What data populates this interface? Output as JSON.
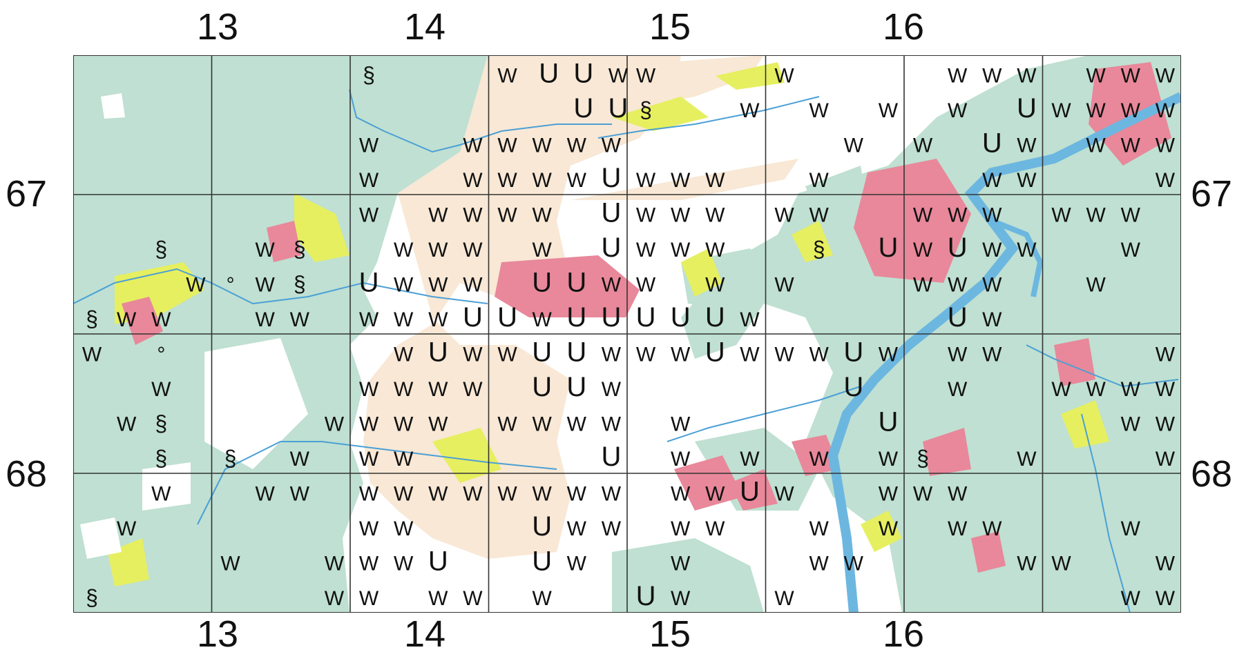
{
  "map": {
    "columns_top": [
      "13",
      "14",
      "15",
      "16"
    ],
    "columns_bottom": [
      "13",
      "14",
      "15",
      "16"
    ],
    "rows_left": [
      "67",
      "68"
    ],
    "rows_right": [
      "67",
      "68"
    ],
    "colors": {
      "forest": "#bfe0d2",
      "farmland": "#f8e8d5",
      "urban": "#e8889a",
      "meadow": "#e6ef60",
      "water": "#6cb7e0",
      "open": "#ffffff",
      "grid": "#333333"
    },
    "grid_cells": [
      [
        [
          "",
          "",
          "",
          ""
        ],
        [
          "",
          "",
          "",
          ""
        ],
        [
          "",
          "§",
          "",
          ""
        ],
        [
          "§",
          "W",
          "W",
          ""
        ]
      ],
      [
        [
          "",
          "",
          "",
          ""
        ],
        [
          "",
          "W",
          "§",
          ""
        ],
        [
          "W",
          "°",
          "W",
          "§"
        ],
        [
          "",
          "",
          "W",
          "W"
        ]
      ],
      [
        [
          "§",
          "",
          "",
          ""
        ],
        [
          "W",
          "",
          "",
          "W"
        ],
        [
          "W",
          "",
          "",
          "W"
        ],
        [
          "W",
          "",
          "W",
          "W"
        ]
      ],
      [
        [
          "W",
          "U",
          "U",
          "W"
        ],
        [
          "",
          "",
          "U",
          "U"
        ],
        [
          "W",
          "W",
          "W",
          "W"
        ],
        [
          "W",
          "W",
          "W",
          "U"
        ]
      ],
      [
        [
          "W",
          "",
          "",
          ""
        ],
        [
          "§",
          "",
          "",
          "W"
        ],
        [
          "",
          "",
          "",
          ""
        ],
        [
          "W",
          "W",
          "W",
          ""
        ]
      ],
      [
        [
          "",
          "W",
          "",
          ""
        ],
        [
          "",
          "",
          "W",
          ""
        ],
        [
          "",
          "",
          "",
          "W"
        ],
        [
          "",
          "W",
          "",
          ""
        ]
      ],
      [
        [
          "",
          "W",
          "W",
          "W"
        ],
        [
          "",
          "W",
          "",
          "U"
        ],
        [
          "W",
          "",
          "U",
          "W"
        ],
        [
          "",
          "W",
          "W",
          ""
        ]
      ],
      [
        [
          "W",
          "W",
          "W",
          ""
        ],
        [
          "W",
          "W",
          "W",
          "W"
        ],
        [
          "W",
          "W",
          "W",
          ""
        ],
        [
          "",
          "",
          "W",
          "W"
        ]
      ]
    ],
    "row67_symbols": [
      [
        "",
        "",
        "",
        ""
      ],
      [
        "",
        "§",
        "",
        ""
      ],
      [
        "",
        "W",
        "°",
        ""
      ],
      [
        "§",
        "W",
        "W",
        ""
      ]
    ],
    "symbols": [
      {
        "t": "§",
        "c": 2,
        "r": 0
      },
      {
        "t": "W",
        "c": 3,
        "r": 0
      },
      {
        "t": "U",
        "c": 3.3,
        "r": 0
      },
      {
        "t": "U",
        "c": 3.55,
        "r": 0
      },
      {
        "t": "W",
        "c": 3.8,
        "r": 0
      },
      {
        "t": "W",
        "c": 4.0,
        "r": 0
      },
      {
        "t": "W",
        "c": 5.0,
        "r": 0
      },
      {
        "t": "W",
        "c": 6.25,
        "r": 0
      },
      {
        "t": "W",
        "c": 6.5,
        "r": 0
      },
      {
        "t": "W",
        "c": 6.75,
        "r": 0
      },
      {
        "t": "W",
        "c": 7.25,
        "r": 0
      },
      {
        "t": "W",
        "c": 7.5,
        "r": 0
      },
      {
        "t": "W",
        "c": 7.75,
        "r": 0
      },
      {
        "t": "U",
        "c": 3.55,
        "r": 1
      },
      {
        "t": "U",
        "c": 3.8,
        "r": 1
      },
      {
        "t": "§",
        "c": 4.0,
        "r": 1
      },
      {
        "t": "W",
        "c": 4.75,
        "r": 1
      },
      {
        "t": "W",
        "c": 5.25,
        "r": 1
      },
      {
        "t": "W",
        "c": 5.75,
        "r": 1
      },
      {
        "t": "W",
        "c": 6.25,
        "r": 1
      },
      {
        "t": "U",
        "c": 6.75,
        "r": 1
      },
      {
        "t": "W",
        "c": 7.0,
        "r": 1
      },
      {
        "t": "W",
        "c": 7.25,
        "r": 1
      },
      {
        "t": "W",
        "c": 7.5,
        "r": 1
      },
      {
        "t": "W",
        "c": 7.75,
        "r": 1
      },
      {
        "t": "W",
        "c": 2,
        "r": 2
      },
      {
        "t": "W",
        "c": 2.75,
        "r": 2
      },
      {
        "t": "W",
        "c": 3.0,
        "r": 2
      },
      {
        "t": "W",
        "c": 3.25,
        "r": 2
      },
      {
        "t": "W",
        "c": 3.5,
        "r": 2
      },
      {
        "t": "W",
        "c": 3.75,
        "r": 2
      },
      {
        "t": "W",
        "c": 5.5,
        "r": 2
      },
      {
        "t": "W",
        "c": 6.0,
        "r": 2
      },
      {
        "t": "U",
        "c": 6.5,
        "r": 2
      },
      {
        "t": "W",
        "c": 6.75,
        "r": 2
      },
      {
        "t": "W",
        "c": 7.25,
        "r": 2
      },
      {
        "t": "W",
        "c": 7.5,
        "r": 2
      },
      {
        "t": "W",
        "c": 7.75,
        "r": 2
      },
      {
        "t": "W",
        "c": 2,
        "r": 3
      },
      {
        "t": "W",
        "c": 2.75,
        "r": 3
      },
      {
        "t": "W",
        "c": 3.0,
        "r": 3
      },
      {
        "t": "W",
        "c": 3.25,
        "r": 3
      },
      {
        "t": "W",
        "c": 3.5,
        "r": 3
      },
      {
        "t": "U",
        "c": 3.75,
        "r": 3
      },
      {
        "t": "W",
        "c": 4.0,
        "r": 3
      },
      {
        "t": "W",
        "c": 4.25,
        "r": 3
      },
      {
        "t": "W",
        "c": 4.5,
        "r": 3
      },
      {
        "t": "W",
        "c": 5.25,
        "r": 3
      },
      {
        "t": "W",
        "c": 6.5,
        "r": 3
      },
      {
        "t": "W",
        "c": 6.75,
        "r": 3
      },
      {
        "t": "W",
        "c": 7.75,
        "r": 3
      },
      {
        "t": "W",
        "c": 2,
        "r": 4
      },
      {
        "t": "W",
        "c": 2.5,
        "r": 4
      },
      {
        "t": "W",
        "c": 2.75,
        "r": 4
      },
      {
        "t": "W",
        "c": 3.0,
        "r": 4
      },
      {
        "t": "W",
        "c": 3.25,
        "r": 4
      },
      {
        "t": "U",
        "c": 3.75,
        "r": 4
      },
      {
        "t": "W",
        "c": 4.0,
        "r": 4
      },
      {
        "t": "W",
        "c": 4.25,
        "r": 4
      },
      {
        "t": "W",
        "c": 4.5,
        "r": 4
      },
      {
        "t": "W",
        "c": 5.0,
        "r": 4
      },
      {
        "t": "W",
        "c": 5.25,
        "r": 4
      },
      {
        "t": "W",
        "c": 6.0,
        "r": 4
      },
      {
        "t": "W",
        "c": 6.25,
        "r": 4
      },
      {
        "t": "W",
        "c": 6.5,
        "r": 4
      },
      {
        "t": "W",
        "c": 7.0,
        "r": 4
      },
      {
        "t": "W",
        "c": 7.25,
        "r": 4
      },
      {
        "t": "W",
        "c": 7.5,
        "r": 4
      },
      {
        "t": "§",
        "c": 0.5,
        "r": 5
      },
      {
        "t": "W",
        "c": 1.25,
        "r": 5
      },
      {
        "t": "§",
        "c": 1.5,
        "r": 5
      },
      {
        "t": "W",
        "c": 2.25,
        "r": 5
      },
      {
        "t": "W",
        "c": 2.5,
        "r": 5
      },
      {
        "t": "W",
        "c": 2.75,
        "r": 5
      },
      {
        "t": "W",
        "c": 3.25,
        "r": 5
      },
      {
        "t": "U",
        "c": 3.75,
        "r": 5
      },
      {
        "t": "W",
        "c": 4.0,
        "r": 5
      },
      {
        "t": "W",
        "c": 4.25,
        "r": 5
      },
      {
        "t": "W",
        "c": 4.5,
        "r": 5
      },
      {
        "t": "§",
        "c": 5.25,
        "r": 5
      },
      {
        "t": "U",
        "c": 5.75,
        "r": 5
      },
      {
        "t": "W",
        "c": 6.0,
        "r": 5
      },
      {
        "t": "U",
        "c": 6.25,
        "r": 5
      },
      {
        "t": "W",
        "c": 6.5,
        "r": 5
      },
      {
        "t": "W",
        "c": 6.75,
        "r": 5
      },
      {
        "t": "W",
        "c": 7.5,
        "r": 5
      },
      {
        "t": "W",
        "c": 0.75,
        "r": 6
      },
      {
        "t": "°",
        "c": 1.0,
        "r": 6
      },
      {
        "t": "W",
        "c": 1.25,
        "r": 6
      },
      {
        "t": "§",
        "c": 1.5,
        "r": 6
      },
      {
        "t": "U",
        "c": 2.0,
        "r": 6
      },
      {
        "t": "W",
        "c": 2.25,
        "r": 6
      },
      {
        "t": "W",
        "c": 2.5,
        "r": 6
      },
      {
        "t": "W",
        "c": 2.75,
        "r": 6
      },
      {
        "t": "U",
        "c": 3.25,
        "r": 6
      },
      {
        "t": "U",
        "c": 3.5,
        "r": 6
      },
      {
        "t": "W",
        "c": 3.75,
        "r": 6
      },
      {
        "t": "W",
        "c": 4.0,
        "r": 6
      },
      {
        "t": "W",
        "c": 4.5,
        "r": 6
      },
      {
        "t": "W",
        "c": 5.0,
        "r": 6
      },
      {
        "t": "W",
        "c": 6.0,
        "r": 6
      },
      {
        "t": "W",
        "c": 6.25,
        "r": 6
      },
      {
        "t": "W",
        "c": 6.5,
        "r": 6
      },
      {
        "t": "W",
        "c": 7.25,
        "r": 6
      },
      {
        "t": "§",
        "c": 0.0,
        "r": 7
      },
      {
        "t": "W",
        "c": 0.25,
        "r": 7
      },
      {
        "t": "W",
        "c": 0.5,
        "r": 7
      },
      {
        "t": "W",
        "c": 1.25,
        "r": 7
      },
      {
        "t": "W",
        "c": 1.5,
        "r": 7
      },
      {
        "t": "W",
        "c": 2.0,
        "r": 7
      },
      {
        "t": "W",
        "c": 2.25,
        "r": 7
      },
      {
        "t": "W",
        "c": 2.5,
        "r": 7
      },
      {
        "t": "U",
        "c": 2.75,
        "r": 7
      },
      {
        "t": "U",
        "c": 3.0,
        "r": 7
      },
      {
        "t": "W",
        "c": 3.25,
        "r": 7
      },
      {
        "t": "U",
        "c": 3.5,
        "r": 7
      },
      {
        "t": "U",
        "c": 3.75,
        "r": 7
      },
      {
        "t": "U",
        "c": 4.0,
        "r": 7
      },
      {
        "t": "U",
        "c": 4.25,
        "r": 7
      },
      {
        "t": "U",
        "c": 4.5,
        "r": 7
      },
      {
        "t": "W",
        "c": 4.75,
        "r": 7
      },
      {
        "t": "U",
        "c": 6.25,
        "r": 7
      },
      {
        "t": "W",
        "c": 6.5,
        "r": 7
      },
      {
        "t": "W",
        "c": 0.0,
        "r": 8
      },
      {
        "t": "°",
        "c": 0.5,
        "r": 8
      },
      {
        "t": "W",
        "c": 2.25,
        "r": 8
      },
      {
        "t": "U",
        "c": 2.5,
        "r": 8
      },
      {
        "t": "W",
        "c": 2.75,
        "r": 8
      },
      {
        "t": "W",
        "c": 3.0,
        "r": 8
      },
      {
        "t": "U",
        "c": 3.25,
        "r": 8
      },
      {
        "t": "U",
        "c": 3.5,
        "r": 8
      },
      {
        "t": "W",
        "c": 3.75,
        "r": 8
      },
      {
        "t": "W",
        "c": 4.0,
        "r": 8
      },
      {
        "t": "W",
        "c": 4.25,
        "r": 8
      },
      {
        "t": "U",
        "c": 4.5,
        "r": 8
      },
      {
        "t": "W",
        "c": 4.75,
        "r": 8
      },
      {
        "t": "W",
        "c": 5.0,
        "r": 8
      },
      {
        "t": "W",
        "c": 5.25,
        "r": 8
      },
      {
        "t": "U",
        "c": 5.5,
        "r": 8
      },
      {
        "t": "W",
        "c": 5.75,
        "r": 8
      },
      {
        "t": "W",
        "c": 6.25,
        "r": 8
      },
      {
        "t": "W",
        "c": 6.5,
        "r": 8
      },
      {
        "t": "W",
        "c": 7.75,
        "r": 8
      },
      {
        "t": "W",
        "c": 0.5,
        "r": 9
      },
      {
        "t": "W",
        "c": 2.0,
        "r": 9
      },
      {
        "t": "W",
        "c": 2.25,
        "r": 9
      },
      {
        "t": "W",
        "c": 2.5,
        "r": 9
      },
      {
        "t": "W",
        "c": 2.75,
        "r": 9
      },
      {
        "t": "U",
        "c": 3.25,
        "r": 9
      },
      {
        "t": "U",
        "c": 3.5,
        "r": 9
      },
      {
        "t": "W",
        "c": 3.75,
        "r": 9
      },
      {
        "t": "U",
        "c": 5.5,
        "r": 9
      },
      {
        "t": "W",
        "c": 6.25,
        "r": 9
      },
      {
        "t": "W",
        "c": 7.0,
        "r": 9
      },
      {
        "t": "W",
        "c": 7.25,
        "r": 9
      },
      {
        "t": "W",
        "c": 7.5,
        "r": 9
      },
      {
        "t": "W",
        "c": 7.75,
        "r": 9
      },
      {
        "t": "W",
        "c": 0.25,
        "r": 10
      },
      {
        "t": "§",
        "c": 0.5,
        "r": 10
      },
      {
        "t": "W",
        "c": 1.75,
        "r": 10
      },
      {
        "t": "W",
        "c": 2.0,
        "r": 10
      },
      {
        "t": "W",
        "c": 2.25,
        "r": 10
      },
      {
        "t": "W",
        "c": 2.5,
        "r": 10
      },
      {
        "t": "W",
        "c": 3.0,
        "r": 10
      },
      {
        "t": "W",
        "c": 3.25,
        "r": 10
      },
      {
        "t": "W",
        "c": 3.5,
        "r": 10
      },
      {
        "t": "W",
        "c": 3.75,
        "r": 10
      },
      {
        "t": "W",
        "c": 4.25,
        "r": 10
      },
      {
        "t": "U",
        "c": 5.75,
        "r": 10
      },
      {
        "t": "W",
        "c": 7.5,
        "r": 10
      },
      {
        "t": "W",
        "c": 7.75,
        "r": 10
      },
      {
        "t": "§",
        "c": 0.5,
        "r": 11
      },
      {
        "t": "§",
        "c": 1.0,
        "r": 11
      },
      {
        "t": "W",
        "c": 1.5,
        "r": 11
      },
      {
        "t": "W",
        "c": 2.0,
        "r": 11
      },
      {
        "t": "W",
        "c": 2.25,
        "r": 11
      },
      {
        "t": "U",
        "c": 3.75,
        "r": 11
      },
      {
        "t": "W",
        "c": 4.25,
        "r": 11
      },
      {
        "t": "W",
        "c": 4.75,
        "r": 11
      },
      {
        "t": "W",
        "c": 5.25,
        "r": 11
      },
      {
        "t": "W",
        "c": 5.75,
        "r": 11
      },
      {
        "t": "§",
        "c": 6.0,
        "r": 11
      },
      {
        "t": "W",
        "c": 6.75,
        "r": 11
      },
      {
        "t": "W",
        "c": 7.75,
        "r": 11
      },
      {
        "t": "W",
        "c": 0.5,
        "r": 12
      },
      {
        "t": "W",
        "c": 1.25,
        "r": 12
      },
      {
        "t": "W",
        "c": 1.5,
        "r": 12
      },
      {
        "t": "W",
        "c": 2.0,
        "r": 12
      },
      {
        "t": "W",
        "c": 2.25,
        "r": 12
      },
      {
        "t": "W",
        "c": 2.5,
        "r": 12
      },
      {
        "t": "W",
        "c": 2.75,
        "r": 12
      },
      {
        "t": "W",
        "c": 3.0,
        "r": 12
      },
      {
        "t": "W",
        "c": 3.25,
        "r": 12
      },
      {
        "t": "W",
        "c": 3.5,
        "r": 12
      },
      {
        "t": "W",
        "c": 3.75,
        "r": 12
      },
      {
        "t": "W",
        "c": 4.25,
        "r": 12
      },
      {
        "t": "W",
        "c": 4.5,
        "r": 12
      },
      {
        "t": "U",
        "c": 4.75,
        "r": 12
      },
      {
        "t": "W",
        "c": 5.0,
        "r": 12
      },
      {
        "t": "W",
        "c": 5.75,
        "r": 12
      },
      {
        "t": "W",
        "c": 6.0,
        "r": 12
      },
      {
        "t": "W",
        "c": 6.25,
        "r": 12
      },
      {
        "t": "W",
        "c": 0.25,
        "r": 13
      },
      {
        "t": "W",
        "c": 2.0,
        "r": 13
      },
      {
        "t": "W",
        "c": 2.25,
        "r": 13
      },
      {
        "t": "U",
        "c": 3.25,
        "r": 13
      },
      {
        "t": "W",
        "c": 3.5,
        "r": 13
      },
      {
        "t": "W",
        "c": 3.75,
        "r": 13
      },
      {
        "t": "W",
        "c": 4.25,
        "r": 13
      },
      {
        "t": "W",
        "c": 4.5,
        "r": 13
      },
      {
        "t": "W",
        "c": 5.25,
        "r": 13
      },
      {
        "t": "W",
        "c": 5.75,
        "r": 13
      },
      {
        "t": "W",
        "c": 6.25,
        "r": 13
      },
      {
        "t": "W",
        "c": 6.5,
        "r": 13
      },
      {
        "t": "W",
        "c": 7.5,
        "r": 13
      },
      {
        "t": "W",
        "c": 1.0,
        "r": 14
      },
      {
        "t": "W",
        "c": 1.75,
        "r": 14
      },
      {
        "t": "W",
        "c": 2.0,
        "r": 14
      },
      {
        "t": "W",
        "c": 2.25,
        "r": 14
      },
      {
        "t": "U",
        "c": 2.5,
        "r": 14
      },
      {
        "t": "U",
        "c": 3.25,
        "r": 14
      },
      {
        "t": "W",
        "c": 3.5,
        "r": 14
      },
      {
        "t": "W",
        "c": 4.25,
        "r": 14
      },
      {
        "t": "W",
        "c": 5.25,
        "r": 14
      },
      {
        "t": "W",
        "c": 5.5,
        "r": 14
      },
      {
        "t": "W",
        "c": 6.75,
        "r": 14
      },
      {
        "t": "W",
        "c": 7.0,
        "r": 14
      },
      {
        "t": "W",
        "c": 7.75,
        "r": 14
      },
      {
        "t": "§",
        "c": 0.0,
        "r": 15
      },
      {
        "t": "W",
        "c": 1.75,
        "r": 15
      },
      {
        "t": "W",
        "c": 2.0,
        "r": 15
      },
      {
        "t": "W",
        "c": 2.5,
        "r": 15
      },
      {
        "t": "W",
        "c": 2.75,
        "r": 15
      },
      {
        "t": "W",
        "c": 3.25,
        "r": 15
      },
      {
        "t": "U",
        "c": 4.0,
        "r": 15
      },
      {
        "t": "W",
        "c": 4.25,
        "r": 15
      },
      {
        "t": "W",
        "c": 5.0,
        "r": 15
      },
      {
        "t": "W",
        "c": 7.5,
        "r": 15
      },
      {
        "t": "W",
        "c": 7.75,
        "r": 15
      }
    ]
  }
}
